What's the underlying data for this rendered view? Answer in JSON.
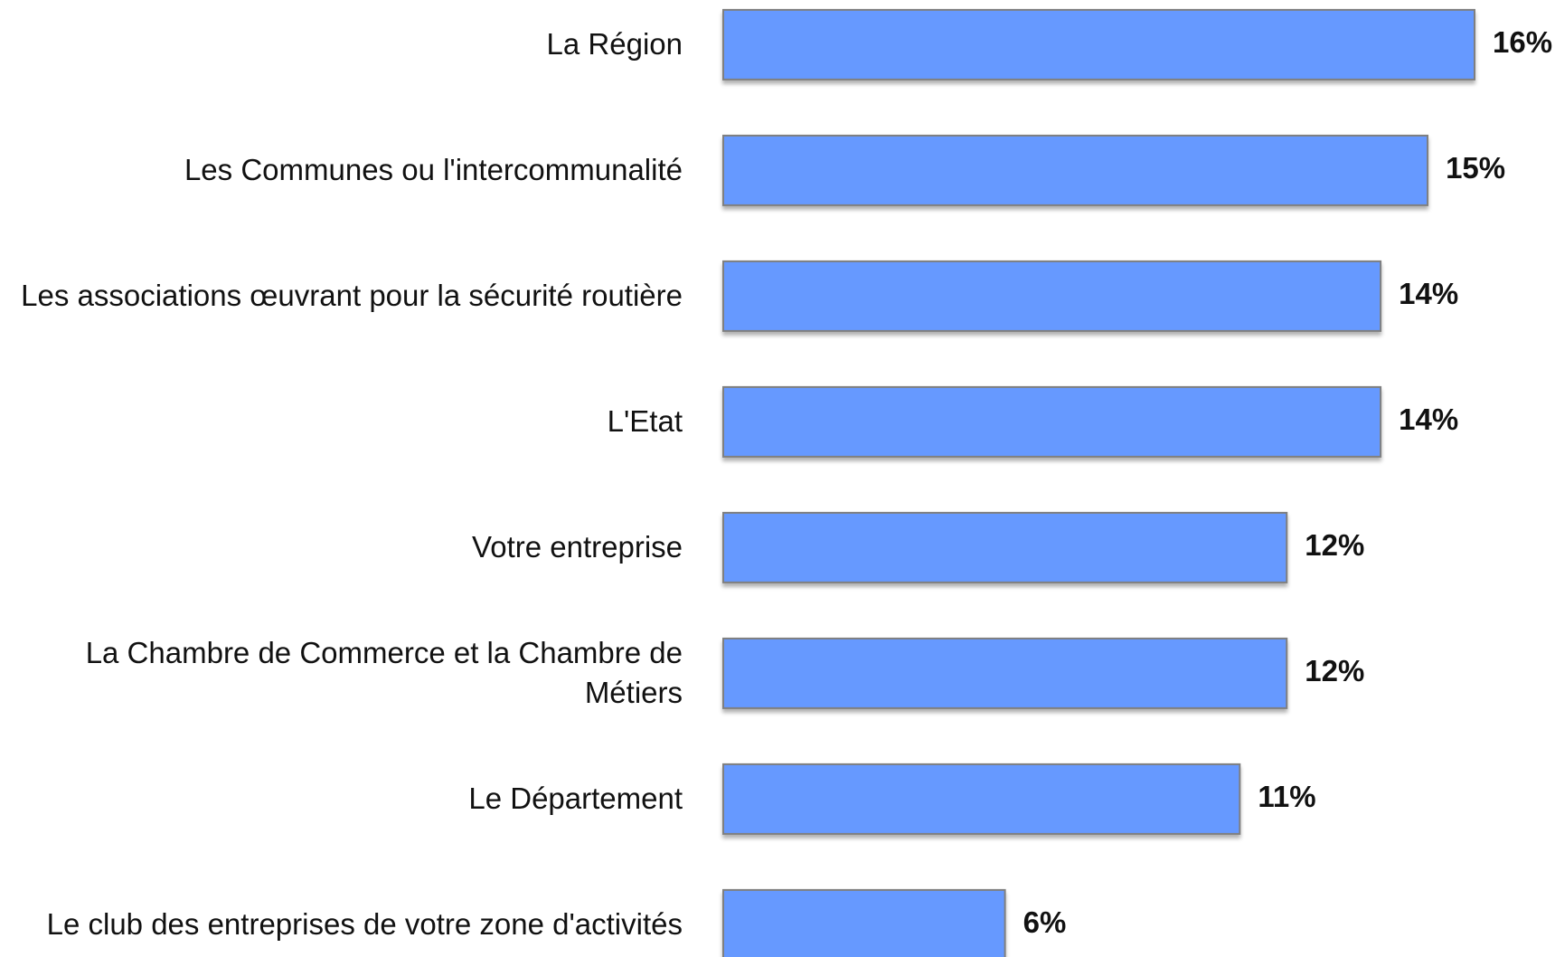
{
  "chart_data": {
    "type": "bar",
    "orientation": "horizontal",
    "categories": [
      "La Région",
      "Les Communes ou l'intercommunalité",
      "Les associations œuvrant pour la sécurité routière",
      "L'Etat",
      "Votre entreprise",
      "La Chambre de Commerce et la Chambre de Métiers",
      "Le Département",
      "Le club des entreprises de votre zone d'activités"
    ],
    "values": [
      16,
      15,
      14,
      14,
      12,
      12,
      11,
      6
    ],
    "value_labels": [
      "16%",
      "15%",
      "14%",
      "14%",
      "12%",
      "12%",
      "11%",
      "6%"
    ],
    "color": "#6699ff"
  }
}
